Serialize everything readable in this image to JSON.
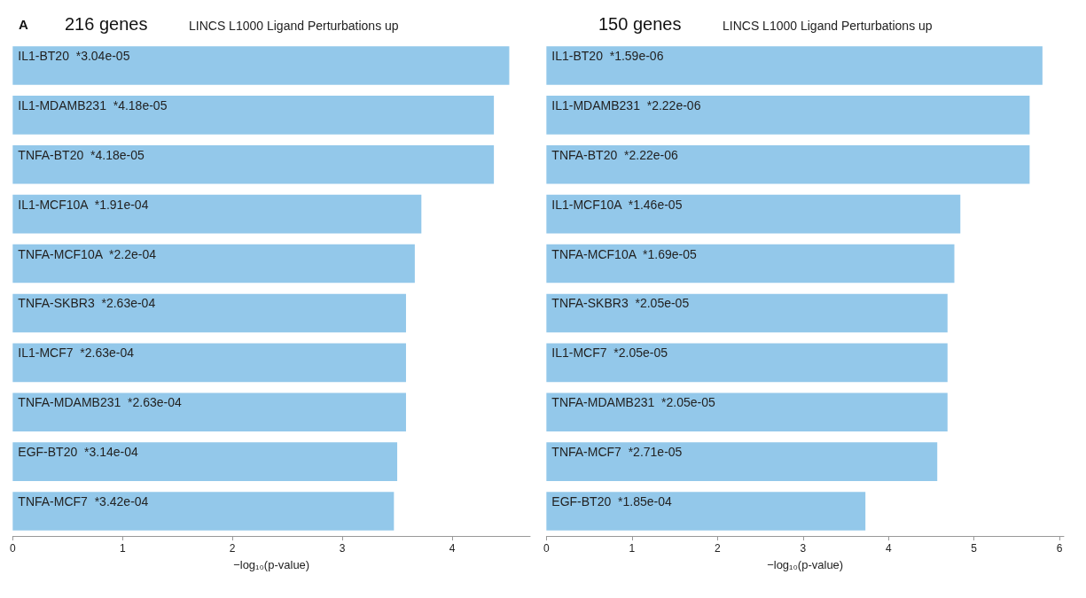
{
  "chart_data": [
    {
      "type": "bar",
      "orientation": "horizontal",
      "title": "216 genes",
      "subtitle": "LINCS L1000 Ligand Perturbations up",
      "annotations": [
        "A"
      ],
      "xlabel": "−log₁₀(p-value)",
      "categories": [
        "IL1-BT20  *3.04e-05",
        "IL1-MDAMB231  *4.18e-05",
        "TNFA-BT20  *4.18e-05",
        "IL1-MCF10A  *1.91e-04",
        "TNFA-MCF10A  *2.2e-04",
        "TNFA-SKBR3  *2.63e-04",
        "IL1-MCF7  *2.63e-04",
        "TNFA-MDAMB231  *2.63e-04",
        "EGF-BT20  *3.14e-04",
        "TNFA-MCF7  *3.42e-04"
      ],
      "values": [
        4.52,
        4.38,
        4.38,
        3.72,
        3.66,
        3.58,
        3.58,
        3.58,
        3.5,
        3.47
      ],
      "color": "#93c8ea",
      "xlim": [
        0,
        4.71
      ],
      "xticks": [
        0,
        1,
        2,
        3,
        4
      ],
      "grid": false
    },
    {
      "type": "bar",
      "orientation": "horizontal",
      "title": "150 genes",
      "subtitle": "LINCS L1000 Ligand Perturbations up",
      "xlabel": "−log₁₀(p-value)",
      "categories": [
        "IL1-BT20  *1.59e-06",
        "IL1-MDAMB231  *2.22e-06",
        "TNFA-BT20  *2.22e-06",
        "IL1-MCF10A  *1.46e-05",
        "TNFA-MCF10A  *1.69e-05",
        "TNFA-SKBR3  *2.05e-05",
        "IL1-MCF7  *2.05e-05",
        "TNFA-MDAMB231  *2.05e-05",
        "TNFA-MCF7  *2.71e-05",
        "EGF-BT20  *1.85e-04"
      ],
      "values": [
        5.8,
        5.65,
        5.65,
        4.84,
        4.77,
        4.69,
        4.69,
        4.69,
        4.57,
        3.73
      ],
      "color": "#93c8ea",
      "xlim": [
        0,
        6.05
      ],
      "xticks": [
        0,
        1,
        2,
        3,
        4,
        5,
        6
      ],
      "grid": false
    }
  ]
}
